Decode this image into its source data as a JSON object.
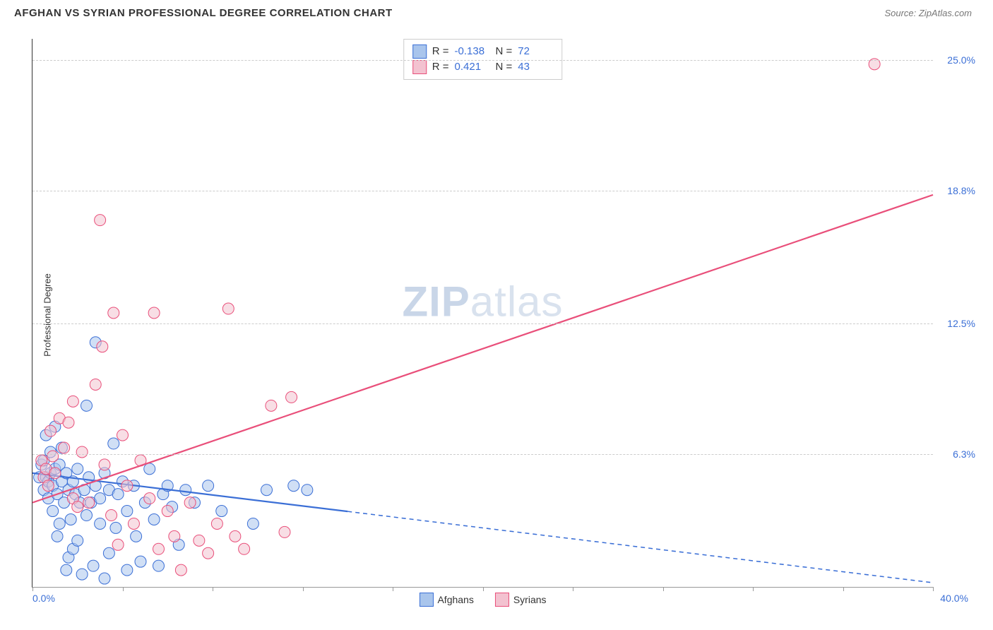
{
  "header": {
    "title": "AFGHAN VS SYRIAN PROFESSIONAL DEGREE CORRELATION CHART",
    "source": "Source: ZipAtlas.com"
  },
  "watermark": {
    "zip": "ZIP",
    "atlas": "atlas"
  },
  "chart": {
    "type": "scatter",
    "ylabel": "Professional Degree",
    "xlim": [
      0,
      40
    ],
    "ylim": [
      0,
      26
    ],
    "xlabel_min": "0.0%",
    "xlabel_max": "40.0%",
    "xtick_positions": [
      0,
      4,
      8,
      12,
      16,
      20,
      24,
      28,
      32,
      36,
      40
    ],
    "yticks": [
      {
        "value": 6.3,
        "label": "6.3%"
      },
      {
        "value": 12.5,
        "label": "12.5%"
      },
      {
        "value": 18.8,
        "label": "18.8%"
      },
      {
        "value": 25.0,
        "label": "25.0%"
      }
    ],
    "grid_color": "#cccccc",
    "background_color": "#ffffff",
    "marker_radius": 8,
    "marker_opacity": 0.55,
    "series": [
      {
        "key": "afghans",
        "label": "Afghans",
        "color_fill": "#a9c5ec",
        "color_stroke": "#3b6fd6",
        "R": "-0.138",
        "N": "72",
        "regression": {
          "x1": 0,
          "y1": 5.4,
          "x2": 40,
          "y2": 0.2,
          "solid_until_x": 14,
          "stroke_width": 2.2
        },
        "points": [
          [
            0.3,
            5.2
          ],
          [
            0.4,
            5.8
          ],
          [
            0.5,
            4.6
          ],
          [
            0.5,
            6.0
          ],
          [
            0.6,
            5.2
          ],
          [
            0.6,
            7.2
          ],
          [
            0.7,
            5.0
          ],
          [
            0.7,
            4.2
          ],
          [
            0.8,
            6.4
          ],
          [
            0.8,
            5.4
          ],
          [
            0.9,
            4.8
          ],
          [
            0.9,
            3.6
          ],
          [
            1.0,
            5.6
          ],
          [
            1.0,
            7.6
          ],
          [
            1.1,
            4.4
          ],
          [
            1.1,
            2.4
          ],
          [
            1.2,
            5.8
          ],
          [
            1.2,
            3.0
          ],
          [
            1.3,
            6.6
          ],
          [
            1.3,
            5.0
          ],
          [
            1.4,
            4.0
          ],
          [
            1.5,
            5.4
          ],
          [
            1.5,
            0.8
          ],
          [
            1.6,
            1.4
          ],
          [
            1.6,
            4.6
          ],
          [
            1.7,
            3.2
          ],
          [
            1.8,
            5.0
          ],
          [
            1.8,
            1.8
          ],
          [
            1.9,
            4.4
          ],
          [
            2.0,
            5.6
          ],
          [
            2.0,
            2.2
          ],
          [
            2.1,
            4.0
          ],
          [
            2.2,
            0.6
          ],
          [
            2.3,
            4.6
          ],
          [
            2.4,
            8.6
          ],
          [
            2.4,
            3.4
          ],
          [
            2.5,
            5.2
          ],
          [
            2.6,
            4.0
          ],
          [
            2.7,
            1.0
          ],
          [
            2.8,
            4.8
          ],
          [
            2.8,
            11.6
          ],
          [
            3.0,
            4.2
          ],
          [
            3.0,
            3.0
          ],
          [
            3.2,
            5.4
          ],
          [
            3.2,
            0.4
          ],
          [
            3.4,
            1.6
          ],
          [
            3.4,
            4.6
          ],
          [
            3.6,
            6.8
          ],
          [
            3.7,
            2.8
          ],
          [
            3.8,
            4.4
          ],
          [
            4.0,
            5.0
          ],
          [
            4.2,
            3.6
          ],
          [
            4.2,
            0.8
          ],
          [
            4.5,
            4.8
          ],
          [
            4.6,
            2.4
          ],
          [
            4.8,
            1.2
          ],
          [
            5.0,
            4.0
          ],
          [
            5.2,
            5.6
          ],
          [
            5.4,
            3.2
          ],
          [
            5.6,
            1.0
          ],
          [
            5.8,
            4.4
          ],
          [
            6.0,
            4.8
          ],
          [
            6.2,
            3.8
          ],
          [
            6.5,
            2.0
          ],
          [
            6.8,
            4.6
          ],
          [
            7.2,
            4.0
          ],
          [
            7.8,
            4.8
          ],
          [
            8.4,
            3.6
          ],
          [
            9.8,
            3.0
          ],
          [
            10.4,
            4.6
          ],
          [
            11.6,
            4.8
          ],
          [
            12.2,
            4.6
          ]
        ]
      },
      {
        "key": "syrians",
        "label": "Syrians",
        "color_fill": "#f3c2d0",
        "color_stroke": "#e94f7a",
        "R": "0.421",
        "N": "43",
        "regression": {
          "x1": 0,
          "y1": 4.0,
          "x2": 40,
          "y2": 18.6,
          "solid_until_x": 40,
          "stroke_width": 2.2
        },
        "points": [
          [
            0.4,
            6.0
          ],
          [
            0.5,
            5.2
          ],
          [
            0.6,
            5.6
          ],
          [
            0.7,
            4.8
          ],
          [
            0.8,
            7.4
          ],
          [
            0.9,
            6.2
          ],
          [
            1.0,
            5.4
          ],
          [
            1.2,
            8.0
          ],
          [
            1.4,
            6.6
          ],
          [
            1.6,
            7.8
          ],
          [
            1.8,
            8.8
          ],
          [
            1.8,
            4.2
          ],
          [
            2.0,
            3.8
          ],
          [
            2.2,
            6.4
          ],
          [
            2.5,
            4.0
          ],
          [
            2.8,
            9.6
          ],
          [
            3.0,
            17.4
          ],
          [
            3.1,
            11.4
          ],
          [
            3.2,
            5.8
          ],
          [
            3.5,
            3.4
          ],
          [
            3.6,
            13.0
          ],
          [
            3.8,
            2.0
          ],
          [
            4.0,
            7.2
          ],
          [
            4.2,
            4.8
          ],
          [
            4.5,
            3.0
          ],
          [
            4.8,
            6.0
          ],
          [
            5.2,
            4.2
          ],
          [
            5.4,
            13.0
          ],
          [
            5.6,
            1.8
          ],
          [
            6.0,
            3.6
          ],
          [
            6.3,
            2.4
          ],
          [
            6.6,
            0.8
          ],
          [
            7.0,
            4.0
          ],
          [
            7.4,
            2.2
          ],
          [
            7.8,
            1.6
          ],
          [
            8.2,
            3.0
          ],
          [
            8.7,
            13.2
          ],
          [
            9.0,
            2.4
          ],
          [
            9.4,
            1.8
          ],
          [
            10.6,
            8.6
          ],
          [
            11.2,
            2.6
          ],
          [
            11.5,
            9.0
          ],
          [
            37.4,
            24.8
          ]
        ]
      }
    ]
  },
  "legend_top": {
    "R_label": "R =",
    "N_label": "N ="
  },
  "colors": {
    "axis_text": "#3b6fd6",
    "border": "#333333"
  }
}
